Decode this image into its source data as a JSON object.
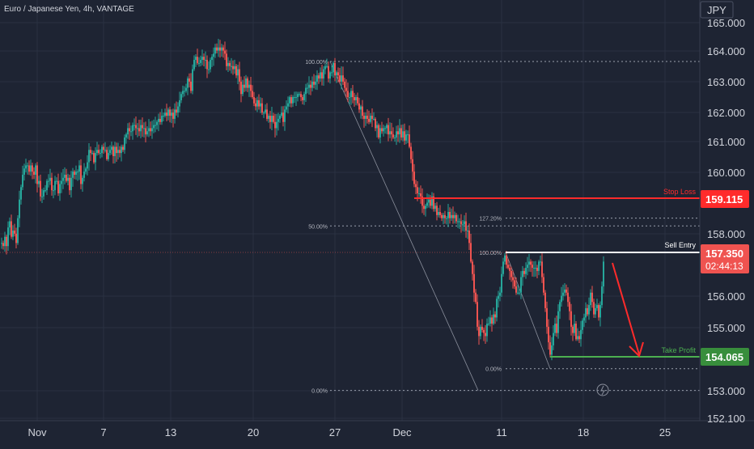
{
  "header": {
    "title": "Euro / Japanese Yen, 4h, VANTAGE"
  },
  "currency_badge": "JPY",
  "colors": {
    "background": "#1e2433",
    "grid": "#2a3142",
    "up": "#26a69a",
    "down": "#ef5350",
    "stop_loss": "#ff2b2b",
    "take_profit": "#4caf50",
    "entry": "#ffffff",
    "axis_text": "#d1d4dc"
  },
  "chart_data": {
    "type": "candlestick",
    "y_axis": {
      "ticks": [
        "165.000",
        "164.000",
        "163.000",
        "162.000",
        "161.000",
        "160.000",
        "158.000",
        "156.000",
        "155.000",
        "153.000",
        "152.100"
      ],
      "range": [
        152.1,
        165.4
      ]
    },
    "x_axis": {
      "ticks": [
        "Nov",
        "7",
        "13",
        "20",
        "27",
        "Dec",
        "11",
        "18",
        "25"
      ]
    },
    "levels": {
      "stop_loss": {
        "label": "Stop Loss",
        "price": "159.115"
      },
      "sell_entry": {
        "label": "Sell Entry",
        "price": "157.350",
        "countdown": "02:44:13"
      },
      "take_profit": {
        "label": "Take Profit",
        "price": "154.065"
      }
    },
    "fib_left": [
      {
        "label": "100.00%",
        "price": 163.75
      },
      {
        "label": "50.00%",
        "price": 158.45
      },
      {
        "label": "0.00%",
        "price": 153.15
      }
    ],
    "fib_right": [
      {
        "label": "127.20%",
        "price": 158.7
      },
      {
        "label": "100.00%",
        "price": 157.6
      },
      {
        "label": "0.00%",
        "price": 153.85
      }
    ],
    "close_path": [
      [
        0,
        157.9
      ],
      [
        2,
        157.8
      ],
      [
        4,
        158.1
      ],
      [
        6,
        157.8
      ],
      [
        8,
        158.4
      ],
      [
        10,
        158.6
      ],
      [
        12,
        158.1
      ],
      [
        14,
        158.3
      ],
      [
        16,
        158.2
      ],
      [
        18,
        157.9
      ],
      [
        20,
        158.7
      ],
      [
        22,
        159.3
      ],
      [
        24,
        159.7
      ],
      [
        26,
        160.1
      ],
      [
        28,
        160.3
      ],
      [
        30,
        160.4
      ],
      [
        32,
        160.4
      ],
      [
        34,
        160.2
      ],
      [
        36,
        160.4
      ],
      [
        38,
        160.2
      ],
      [
        40,
        160.1
      ],
      [
        42,
        160.4
      ],
      [
        44,
        159.8
      ],
      [
        46,
        159.9
      ],
      [
        48,
        159.4
      ],
      [
        50,
        159.4
      ],
      [
        52,
        159.6
      ],
      [
        54,
        159.6
      ],
      [
        56,
        159.9
      ],
      [
        58,
        159.9
      ],
      [
        60,
        160.0
      ],
      [
        62,
        159.6
      ],
      [
        64,
        159.6
      ],
      [
        66,
        159.9
      ],
      [
        68,
        159.9
      ],
      [
        70,
        159.5
      ],
      [
        72,
        159.8
      ],
      [
        74,
        159.9
      ],
      [
        76,
        160.0
      ],
      [
        78,
        160.1
      ],
      [
        80,
        159.9
      ],
      [
        82,
        160.0
      ],
      [
        84,
        159.6
      ],
      [
        86,
        160.0
      ],
      [
        88,
        160.2
      ],
      [
        90,
        160.1
      ],
      [
        92,
        160.2
      ],
      [
        94,
        160.2
      ],
      [
        96,
        160.4
      ],
      [
        98,
        159.8
      ],
      [
        100,
        160.0
      ],
      [
        102,
        160.2
      ],
      [
        104,
        160.3
      ],
      [
        106,
        160.5
      ],
      [
        108,
        160.9
      ],
      [
        110,
        160.8
      ],
      [
        112,
        160.8
      ],
      [
        114,
        160.5
      ],
      [
        116,
        160.8
      ],
      [
        118,
        160.9
      ],
      [
        120,
        160.8
      ],
      [
        122,
        160.8
      ],
      [
        124,
        161.0
      ],
      [
        126,
        160.9
      ],
      [
        128,
        160.9
      ],
      [
        130,
        160.6
      ],
      [
        132,
        160.8
      ],
      [
        134,
        160.9
      ],
      [
        136,
        161.0
      ],
      [
        138,
        160.7
      ],
      [
        140,
        161.0
      ],
      [
        142,
        160.8
      ],
      [
        144,
        160.9
      ],
      [
        146,
        160.8
      ],
      [
        148,
        161.0
      ],
      [
        150,
        160.9
      ],
      [
        152,
        161.3
      ],
      [
        154,
        161.4
      ],
      [
        156,
        161.6
      ],
      [
        158,
        161.5
      ],
      [
        160,
        161.5
      ],
      [
        162,
        161.7
      ],
      [
        164,
        161.7
      ],
      [
        166,
        161.6
      ],
      [
        168,
        161.6
      ],
      [
        170,
        161.5
      ],
      [
        172,
        161.7
      ],
      [
        174,
        161.6
      ],
      [
        176,
        161.6
      ],
      [
        178,
        161.4
      ],
      [
        180,
        161.5
      ],
      [
        182,
        161.6
      ],
      [
        184,
        161.5
      ],
      [
        186,
        161.6
      ],
      [
        188,
        161.7
      ],
      [
        190,
        161.7
      ],
      [
        192,
        161.8
      ],
      [
        194,
        161.9
      ],
      [
        196,
        161.8
      ],
      [
        198,
        162.0
      ],
      [
        200,
        162.0
      ],
      [
        202,
        162.1
      ],
      [
        204,
        162.0
      ],
      [
        206,
        162.2
      ],
      [
        208,
        162.0
      ],
      [
        210,
        162.1
      ],
      [
        212,
        161.9
      ],
      [
        214,
        162.2
      ],
      [
        216,
        162.1
      ],
      [
        218,
        162.3
      ],
      [
        220,
        162.5
      ],
      [
        222,
        162.7
      ],
      [
        224,
        162.8
      ],
      [
        226,
        162.8
      ],
      [
        228,
        162.9
      ],
      [
        230,
        163.2
      ],
      [
        232,
        163.1
      ],
      [
        234,
        162.8
      ],
      [
        236,
        163.5
      ],
      [
        238,
        163.8
      ],
      [
        240,
        163.9
      ],
      [
        242,
        163.7
      ],
      [
        244,
        163.7
      ],
      [
        246,
        163.8
      ],
      [
        248,
        163.9
      ],
      [
        250,
        163.8
      ],
      [
        252,
        163.8
      ],
      [
        254,
        163.5
      ],
      [
        256,
        163.5
      ],
      [
        258,
        163.8
      ],
      [
        260,
        163.9
      ],
      [
        262,
        164.0
      ],
      [
        264,
        164.2
      ],
      [
        266,
        164.1
      ],
      [
        268,
        164.2
      ],
      [
        270,
        164.1
      ],
      [
        272,
        164.2
      ],
      [
        274,
        164.1
      ],
      [
        276,
        164.0
      ],
      [
        278,
        163.6
      ],
      [
        280,
        163.7
      ],
      [
        282,
        163.6
      ],
      [
        284,
        163.6
      ],
      [
        286,
        163.5
      ],
      [
        288,
        163.6
      ],
      [
        290,
        163.3
      ],
      [
        292,
        163.5
      ],
      [
        294,
        163.1
      ],
      [
        296,
        162.7
      ],
      [
        298,
        163.0
      ],
      [
        300,
        162.9
      ],
      [
        302,
        163.2
      ],
      [
        304,
        162.9
      ],
      [
        306,
        163.0
      ],
      [
        308,
        162.8
      ],
      [
        310,
        162.6
      ],
      [
        312,
        162.4
      ],
      [
        314,
        162.3
      ],
      [
        316,
        162.5
      ],
      [
        318,
        162.3
      ],
      [
        320,
        162.4
      ],
      [
        322,
        162.1
      ],
      [
        324,
        162.1
      ],
      [
        326,
        162.2
      ],
      [
        328,
        161.9
      ],
      [
        330,
        162.0
      ],
      [
        332,
        161.8
      ],
      [
        334,
        162.0
      ],
      [
        336,
        161.8
      ],
      [
        338,
        161.6
      ],
      [
        340,
        161.8
      ],
      [
        342,
        161.9
      ],
      [
        344,
        162.0
      ],
      [
        346,
        162.1
      ],
      [
        348,
        161.8
      ],
      [
        350,
        162.2
      ],
      [
        352,
        162.3
      ],
      [
        354,
        162.4
      ],
      [
        356,
        162.6
      ],
      [
        358,
        162.4
      ],
      [
        360,
        162.6
      ],
      [
        362,
        162.6
      ],
      [
        364,
        162.6
      ],
      [
        366,
        162.7
      ],
      [
        368,
        162.7
      ],
      [
        370,
        162.6
      ],
      [
        372,
        162.5
      ],
      [
        374,
        162.7
      ],
      [
        376,
        162.9
      ],
      [
        378,
        162.9
      ],
      [
        380,
        163.0
      ],
      [
        382,
        162.9
      ],
      [
        384,
        163.1
      ],
      [
        386,
        163.0
      ],
      [
        388,
        163.1
      ],
      [
        390,
        163.3
      ],
      [
        392,
        163.2
      ],
      [
        394,
        163.4
      ],
      [
        396,
        163.2
      ],
      [
        398,
        163.5
      ],
      [
        400,
        163.6
      ],
      [
        402,
        163.6
      ],
      [
        404,
        163.2
      ],
      [
        406,
        163.4
      ],
      [
        408,
        163.4
      ],
      [
        410,
        163.7
      ],
      [
        412,
        163.3
      ],
      [
        414,
        163.4
      ],
      [
        416,
        163.3
      ],
      [
        418,
        163.1
      ],
      [
        420,
        163.3
      ],
      [
        422,
        163.1
      ],
      [
        424,
        162.9
      ],
      [
        426,
        162.8
      ],
      [
        428,
        162.6
      ],
      [
        430,
        162.6
      ],
      [
        432,
        162.8
      ],
      [
        434,
        162.6
      ],
      [
        436,
        162.5
      ],
      [
        438,
        162.6
      ],
      [
        440,
        162.4
      ],
      [
        442,
        162.2
      ],
      [
        444,
        162.3
      ],
      [
        446,
        162.0
      ],
      [
        448,
        161.9
      ],
      [
        450,
        162.0
      ],
      [
        452,
        161.9
      ],
      [
        454,
        161.8
      ],
      [
        456,
        162.0
      ],
      [
        458,
        161.9
      ],
      [
        460,
        161.9
      ],
      [
        462,
        161.6
      ],
      [
        464,
        161.7
      ],
      [
        466,
        161.3
      ],
      [
        468,
        161.6
      ],
      [
        470,
        161.5
      ],
      [
        472,
        161.6
      ],
      [
        474,
        161.6
      ],
      [
        476,
        161.7
      ],
      [
        478,
        161.4
      ],
      [
        480,
        161.5
      ],
      [
        482,
        161.4
      ],
      [
        484,
        161.3
      ],
      [
        486,
        161.3
      ],
      [
        488,
        161.5
      ],
      [
        490,
        161.4
      ],
      [
        492,
        161.6
      ],
      [
        494,
        161.3
      ],
      [
        496,
        161.5
      ],
      [
        498,
        161.2
      ],
      [
        500,
        161.4
      ],
      [
        502,
        161.4
      ],
      [
        504,
        161.0
      ],
      [
        506,
        160.6
      ],
      [
        508,
        160.2
      ],
      [
        510,
        159.8
      ],
      [
        512,
        159.7
      ],
      [
        514,
        159.5
      ],
      [
        516,
        159.5
      ],
      [
        518,
        159.4
      ],
      [
        520,
        159.1
      ],
      [
        522,
        159.0
      ],
      [
        524,
        159.1
      ],
      [
        526,
        159.2
      ],
      [
        528,
        159.3
      ],
      [
        530,
        159.1
      ],
      [
        532,
        159.4
      ],
      [
        534,
        159.0
      ],
      [
        536,
        159.1
      ],
      [
        538,
        158.8
      ],
      [
        540,
        158.9
      ],
      [
        542,
        158.8
      ],
      [
        544,
        158.7
      ],
      [
        546,
        158.8
      ],
      [
        548,
        158.7
      ],
      [
        550,
        158.7
      ],
      [
        552,
        158.9
      ],
      [
        554,
        158.7
      ],
      [
        556,
        158.8
      ],
      [
        558,
        158.7
      ],
      [
        560,
        158.8
      ],
      [
        562,
        158.6
      ],
      [
        564,
        158.6
      ],
      [
        566,
        158.6
      ],
      [
        568,
        158.5
      ],
      [
        570,
        158.5
      ],
      [
        572,
        158.6
      ],
      [
        574,
        158.3
      ],
      [
        576,
        158.3
      ],
      [
        578,
        157.9
      ],
      [
        580,
        157.3
      ],
      [
        582,
        156.9
      ],
      [
        584,
        156.3
      ],
      [
        586,
        156.0
      ],
      [
        588,
        155.2
      ],
      [
        590,
        154.9
      ],
      [
        592,
        155.2
      ],
      [
        594,
        155.1
      ],
      [
        596,
        155.0
      ],
      [
        598,
        154.9
      ],
      [
        600,
        155.3
      ],
      [
        602,
        155.3
      ],
      [
        604,
        155.5
      ],
      [
        606,
        155.3
      ],
      [
        608,
        155.6
      ],
      [
        610,
        155.5
      ],
      [
        612,
        156.1
      ],
      [
        614,
        156.2
      ],
      [
        616,
        156.3
      ],
      [
        618,
        156.9
      ],
      [
        620,
        157.3
      ],
      [
        622,
        157.5
      ],
      [
        624,
        157.2
      ],
      [
        626,
        157.1
      ],
      [
        628,
        157.0
      ],
      [
        630,
        156.8
      ],
      [
        632,
        156.7
      ],
      [
        634,
        156.5
      ],
      [
        636,
        156.3
      ],
      [
        638,
        156.3
      ],
      [
        640,
        156.3
      ],
      [
        642,
        156.8
      ],
      [
        644,
        157.0
      ],
      [
        646,
        156.9
      ],
      [
        648,
        157.1
      ],
      [
        650,
        157.2
      ],
      [
        652,
        157.3
      ],
      [
        654,
        157.2
      ],
      [
        656,
        157.1
      ],
      [
        658,
        157.1
      ],
      [
        660,
        157.1
      ],
      [
        662,
        157.0
      ],
      [
        664,
        157.3
      ],
      [
        666,
        157.3
      ],
      [
        668,
        156.8
      ],
      [
        670,
        156.3
      ],
      [
        672,
        155.8
      ],
      [
        674,
        155.2
      ],
      [
        676,
        154.7
      ],
      [
        678,
        154.3
      ],
      [
        680,
        154.6
      ],
      [
        682,
        155.0
      ],
      [
        684,
        155.3
      ],
      [
        686,
        155.0
      ],
      [
        688,
        155.7
      ],
      [
        690,
        156.0
      ],
      [
        692,
        156.2
      ],
      [
        694,
        156.3
      ],
      [
        696,
        156.4
      ],
      [
        698,
        156.3
      ],
      [
        700,
        156.0
      ],
      [
        702,
        155.7
      ],
      [
        704,
        155.2
      ],
      [
        706,
        155.0
      ],
      [
        708,
        155.3
      ],
      [
        710,
        154.8
      ],
      [
        712,
        154.9
      ],
      [
        714,
        154.8
      ],
      [
        716,
        155.1
      ],
      [
        718,
        155.4
      ],
      [
        720,
        155.5
      ],
      [
        722,
        155.8
      ],
      [
        724,
        155.6
      ],
      [
        726,
        155.9
      ],
      [
        728,
        156.3
      ],
      [
        730,
        156.0
      ],
      [
        732,
        155.6
      ],
      [
        734,
        155.8
      ],
      [
        736,
        155.9
      ],
      [
        738,
        155.5
      ],
      [
        740,
        155.9
      ],
      [
        742,
        156.5
      ],
      [
        744,
        157.3
      ]
    ]
  }
}
